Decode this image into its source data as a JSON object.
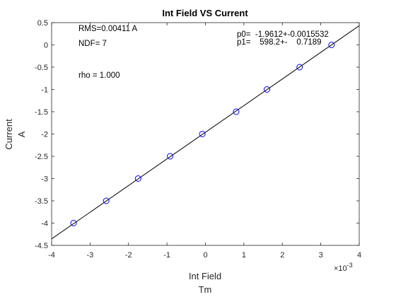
{
  "chart_data": {
    "type": "scatter",
    "title": "Int Field VS Current",
    "xlabel": "Int Field",
    "xunit": "Tm",
    "ylabel": "Current",
    "yunit": "A",
    "xlim": [
      -0.004,
      0.004
    ],
    "ylim": [
      -4.5,
      0.5
    ],
    "x_ticks": [
      -0.004,
      -0.003,
      -0.002,
      -0.001,
      0,
      0.001,
      0.002,
      0.003,
      0.004
    ],
    "x_tick_labels": [
      "-4",
      "-3",
      "-2",
      "-1",
      "0",
      "1",
      "2",
      "3",
      "4"
    ],
    "x_exponent_label": "×10",
    "x_exponent": "-3",
    "y_ticks": [
      0.5,
      0,
      -0.5,
      -1,
      -1.5,
      -2,
      -2.5,
      -3,
      -3.5,
      -4,
      -4.5
    ],
    "y_tick_labels": [
      "0.5",
      "0",
      "-0.5",
      "-1",
      "-1.5",
      "-2",
      "-2.5",
      "-3",
      "-3.5",
      "-4",
      "-4.5"
    ],
    "grid": false,
    "series": [
      {
        "marker": "circle",
        "color": "#0000ff",
        "points": [
          {
            "x": -0.00343,
            "y": -4.0
          },
          {
            "x": -0.00258,
            "y": -3.5
          },
          {
            "x": -0.00175,
            "y": -3.0
          },
          {
            "x": -0.00092,
            "y": -2.5
          },
          {
            "x": -8e-05,
            "y": -2.0
          },
          {
            "x": 0.0008,
            "y": -1.5
          },
          {
            "x": 0.0016,
            "y": -1.0
          },
          {
            "x": 0.00245,
            "y": -0.5
          },
          {
            "x": 0.00328,
            "y": 0.0
          }
        ]
      }
    ],
    "fit_line": {
      "color": "#000000",
      "p0": -1.9612,
      "p1": 598.2,
      "x_range": [
        -0.004,
        0.004
      ]
    },
    "annotations": {
      "rms": "RMS=0.00411 A",
      "ndf": "NDF=    7",
      "rho": "rho     =  1.000",
      "p0": "p0=  -1.9612+-0.0015532",
      "p1": "p1=    598.2+-    0.7189"
    }
  }
}
